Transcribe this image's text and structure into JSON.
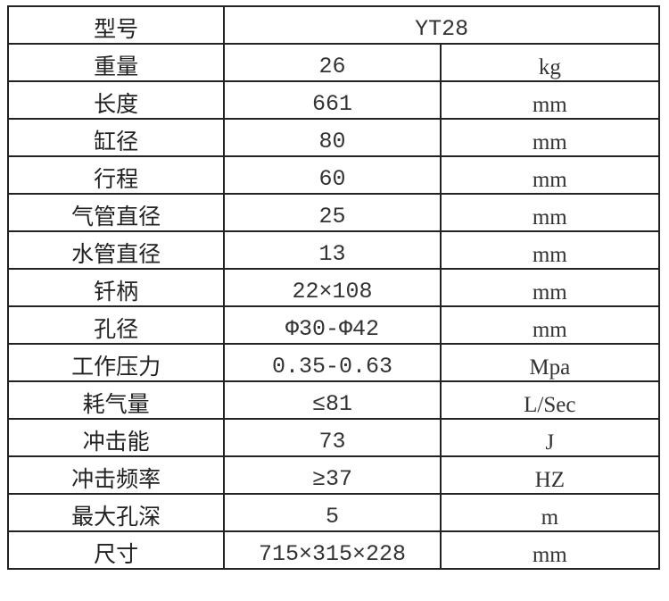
{
  "header": {
    "label": "型号",
    "model": "YT28"
  },
  "rows": [
    {
      "name": "重量",
      "value": "26",
      "unit": "kg"
    },
    {
      "name": "长度",
      "value": "661",
      "unit": "mm"
    },
    {
      "name": "缸径",
      "value": "80",
      "unit": "mm"
    },
    {
      "name": "行程",
      "value": "60",
      "unit": "mm"
    },
    {
      "name": "气管直径",
      "value": "25",
      "unit": "mm"
    },
    {
      "name": "水管直径",
      "value": "13",
      "unit": "mm"
    },
    {
      "name": "钎柄",
      "value": "22×108",
      "unit": "mm"
    },
    {
      "name": "孔径",
      "value": "Φ30-Φ42",
      "unit": "mm"
    },
    {
      "name": "工作压力",
      "value": "0.35-0.63",
      "unit": "Mpa"
    },
    {
      "name": "耗气量",
      "value": "≤81",
      "unit": "L/Sec"
    },
    {
      "name": "冲击能",
      "value": "73",
      "unit": "J"
    },
    {
      "name": "冲击频率",
      "value": "≥37",
      "unit": "HZ"
    },
    {
      "name": "最大孔深",
      "value": "5",
      "unit": "m"
    },
    {
      "name": "尺寸",
      "value": "715×315×228",
      "unit": "mm"
    }
  ]
}
